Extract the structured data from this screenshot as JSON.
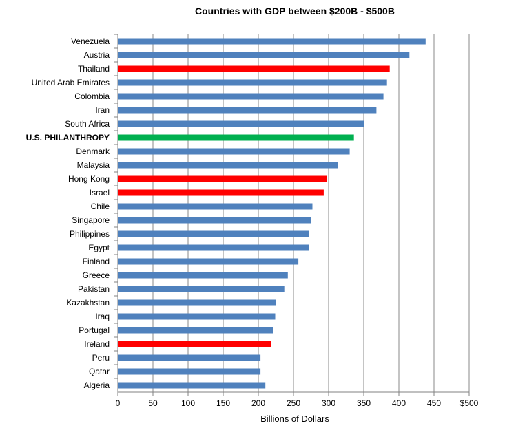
{
  "chart_data": {
    "type": "bar",
    "orientation": "horizontal",
    "title": "Countries with GDP between $200B - $500B",
    "xlabel": "Billions of Dollars",
    "ylabel": "",
    "xlim": [
      0,
      500
    ],
    "x_ticks": [
      "0",
      "50",
      "100",
      "150",
      "200",
      "250",
      "300",
      "350",
      "400",
      "450",
      "$500"
    ],
    "grid": "vertical",
    "legend": "none",
    "colors": {
      "default": "#4F81BD",
      "highlight_red": "#FF0000",
      "highlight_green": "#00B050",
      "gridline": "#888888",
      "axis": "#808080"
    },
    "categories": [
      "Venezuela",
      "Austria",
      "Thailand",
      "United Arab Emirates",
      "Colombia",
      "Iran",
      "South Africa",
      "U.S. PHILANTHROPY",
      "Denmark",
      "Malaysia",
      "Hong Kong",
      "Israel",
      "Chile",
      "Singapore",
      "Philippines",
      "Egypt",
      "Finland",
      "Greece",
      "Pakistan",
      "Kazakhstan",
      "Iraq",
      "Portugal",
      "Ireland",
      "Peru",
      "Qatar",
      "Algeria"
    ],
    "values": [
      438,
      415,
      387,
      383,
      378,
      368,
      351,
      336,
      330,
      313,
      298,
      293,
      277,
      275,
      272,
      272,
      257,
      242,
      237,
      225,
      224,
      221,
      218,
      203,
      203,
      210
    ],
    "bar_colors": [
      "default",
      "default",
      "highlight_red",
      "default",
      "default",
      "default",
      "default",
      "highlight_green",
      "default",
      "default",
      "highlight_red",
      "highlight_red",
      "default",
      "default",
      "default",
      "default",
      "default",
      "default",
      "default",
      "default",
      "default",
      "default",
      "highlight_red",
      "default",
      "default",
      "default"
    ],
    "emphasized_category": "U.S. PHILANTHROPY"
  }
}
